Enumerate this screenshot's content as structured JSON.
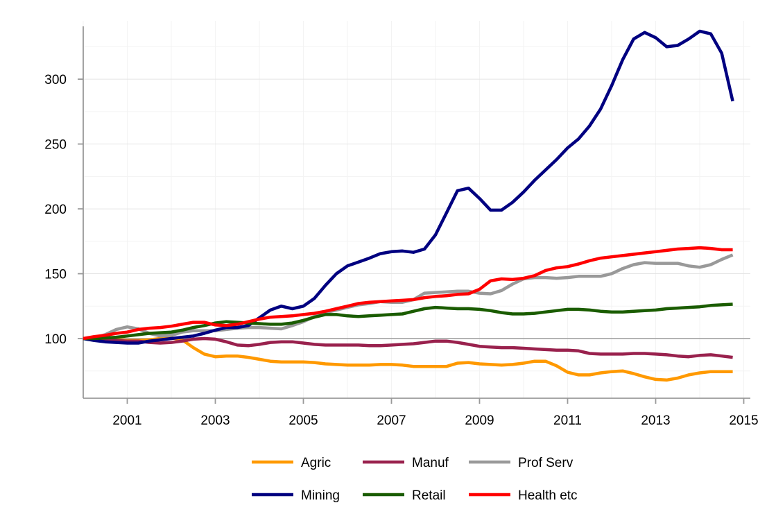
{
  "chart_data": {
    "type": "line",
    "title": "",
    "xlabel": "",
    "ylabel": "",
    "xlim": [
      2000,
      2015.15
    ],
    "ylim": [
      54,
      345
    ],
    "baseline": 100,
    "grid": true,
    "legend_position": "bottom",
    "x_ticks": [
      2001,
      2003,
      2005,
      2007,
      2009,
      2011,
      2013,
      2015
    ],
    "x_tick_labels": [
      "2001",
      "2003",
      "2005",
      "2007",
      "2009",
      "2011",
      "2013",
      "2015"
    ],
    "y_ticks": [
      100,
      150,
      200,
      250,
      300
    ],
    "y_tick_labels": [
      "100",
      "150",
      "200",
      "250",
      "300"
    ],
    "x": [
      2000.0,
      2000.25,
      2000.5,
      2000.75,
      2001.0,
      2001.25,
      2001.5,
      2001.75,
      2002.0,
      2002.25,
      2002.5,
      2002.75,
      2003.0,
      2003.25,
      2003.5,
      2003.75,
      2004.0,
      2004.25,
      2004.5,
      2004.75,
      2005.0,
      2005.25,
      2005.5,
      2005.75,
      2006.0,
      2006.25,
      2006.5,
      2006.75,
      2007.0,
      2007.25,
      2007.5,
      2007.75,
      2008.0,
      2008.25,
      2008.5,
      2008.75,
      2009.0,
      2009.25,
      2009.5,
      2009.75,
      2010.0,
      2010.25,
      2010.5,
      2010.75,
      2011.0,
      2011.25,
      2011.5,
      2011.75,
      2012.0,
      2012.25,
      2012.5,
      2012.75,
      2013.0,
      2013.25,
      2013.5,
      2013.75,
      2014.0,
      2014.25,
      2014.5,
      2014.75
    ],
    "series": [
      {
        "name": "Agric",
        "color": "#ff9900",
        "values": [
          100,
          100,
          99.5,
          99,
          98.5,
          98.5,
          99,
          100,
          100.5,
          99,
          93,
          88,
          86,
          86.5,
          86.5,
          85.5,
          84,
          82.5,
          82,
          82,
          82,
          81.5,
          80.5,
          80,
          79.5,
          79.5,
          79.5,
          80,
          80,
          79.5,
          78.5,
          78.5,
          78.5,
          78.5,
          81,
          81.5,
          80.5,
          80,
          79.5,
          80,
          81,
          82.5,
          82.5,
          79,
          74,
          72,
          72,
          73.5,
          74.5,
          75,
          73,
          70.5,
          68.5,
          68,
          69.5,
          72,
          73.5,
          74.5,
          74.5,
          74.5
        ]
      },
      {
        "name": "Manuf",
        "color": "#99214d",
        "values": [
          100,
          99.5,
          99,
          98.5,
          98,
          98,
          97,
          96.5,
          97,
          98,
          99.5,
          100,
          99.5,
          97.5,
          95,
          94.5,
          95.5,
          97,
          97.5,
          97.5,
          96.5,
          95.5,
          95,
          95,
          95,
          95,
          94.5,
          94.5,
          95,
          95.5,
          96,
          97,
          98,
          98,
          97,
          95.5,
          94,
          93.5,
          93,
          93,
          92.5,
          92,
          91.5,
          91,
          91,
          90.5,
          88.5,
          88,
          88,
          88,
          88.5,
          88.5,
          88,
          87.5,
          86.5,
          86,
          87,
          87.5,
          86.5,
          85.5
        ]
      },
      {
        "name": "Prof Serv",
        "color": "#999999",
        "values": [
          100,
          100.5,
          103,
          107,
          109,
          107.5,
          104,
          102,
          102.5,
          105,
          106,
          106,
          106,
          107,
          108,
          108.5,
          108.5,
          108,
          107.5,
          110,
          113,
          117,
          120,
          122,
          124,
          126,
          127,
          128.5,
          128,
          128,
          130,
          135,
          135.5,
          136,
          136.5,
          136.5,
          135,
          134.5,
          137,
          142,
          146,
          147,
          147,
          146.5,
          147,
          148,
          148,
          148,
          150,
          154,
          157,
          158.5,
          158,
          158,
          158,
          156,
          155,
          157,
          161,
          164.5
        ]
      },
      {
        "name": "Mining",
        "color": "#000080",
        "values": [
          100,
          98.5,
          97.5,
          97,
          96.5,
          96.5,
          98,
          99,
          100,
          101,
          102,
          104,
          106.5,
          108.5,
          108.5,
          110,
          116,
          122,
          125,
          123,
          125,
          131,
          141,
          150,
          156,
          159,
          162,
          165.5,
          167,
          167.5,
          166.5,
          169,
          180,
          197,
          214,
          216,
          208,
          199,
          199,
          205,
          213,
          222,
          230,
          238,
          247,
          254,
          264,
          277,
          295,
          315,
          331,
          336,
          332,
          325,
          326,
          331,
          337,
          335,
          320,
          283
        ]
      },
      {
        "name": "Retail",
        "color": "#1a5c00",
        "values": [
          100,
          100,
          100.5,
          101,
          102,
          103,
          104,
          104.5,
          105,
          106.5,
          108.5,
          110,
          112,
          113,
          112.5,
          112,
          111.5,
          111,
          111,
          112,
          114,
          116.5,
          118.5,
          118.5,
          117.5,
          117,
          117.5,
          118,
          118.5,
          119,
          121,
          123,
          124,
          123.5,
          123,
          123,
          122.5,
          121.5,
          120,
          119,
          119,
          119.5,
          120.5,
          121.5,
          122.5,
          122.5,
          122,
          121,
          120.5,
          120.5,
          121,
          121.5,
          122,
          123,
          123.5,
          124,
          124.5,
          125.5,
          126,
          126.5
        ]
      },
      {
        "name": "Health etc",
        "color": "#ff0000",
        "values": [
          100,
          101.5,
          102.5,
          104,
          105,
          107,
          108,
          108.5,
          109.5,
          111,
          112.5,
          112.5,
          110.5,
          110,
          111,
          113,
          115,
          116.5,
          117,
          117.5,
          118.5,
          119.5,
          121,
          123,
          125,
          127,
          128,
          128.5,
          129,
          129.5,
          130,
          131.5,
          132.5,
          133,
          134,
          134.5,
          138,
          144.5,
          146,
          145.5,
          146.5,
          148.5,
          152.5,
          154.5,
          155.5,
          157.5,
          160,
          162,
          163,
          164,
          165,
          166,
          167,
          168,
          169,
          169.5,
          170,
          169.5,
          168.5,
          168.5
        ]
      }
    ]
  }
}
